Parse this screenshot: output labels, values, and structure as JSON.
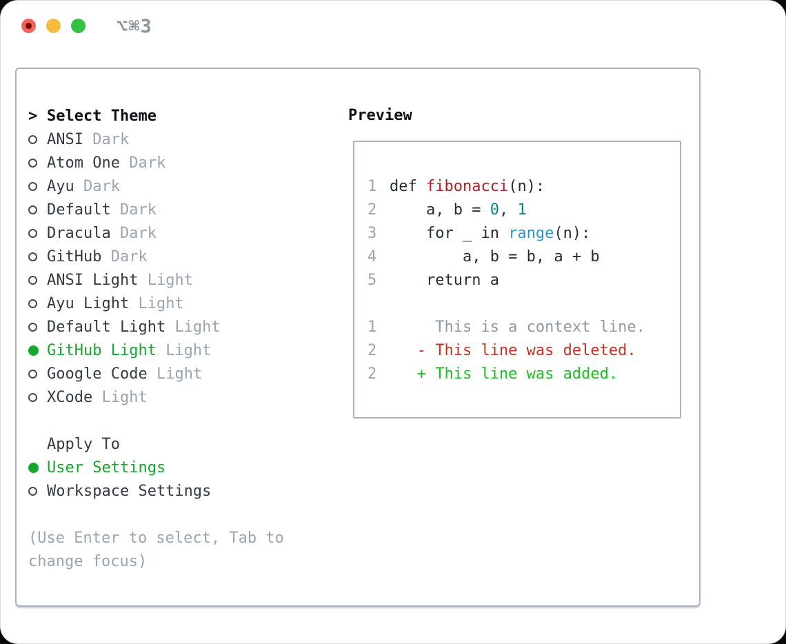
{
  "window": {
    "title": "⌥⌘3"
  },
  "theme_picker": {
    "prompt_char": ">",
    "header": "Select Theme",
    "items": [
      {
        "label": "ANSI",
        "tag": "Dark",
        "selected": false
      },
      {
        "label": "Atom One",
        "tag": "Dark",
        "selected": false
      },
      {
        "label": "Ayu",
        "tag": "Dark",
        "selected": false
      },
      {
        "label": "Default",
        "tag": "Dark",
        "selected": false
      },
      {
        "label": "Dracula",
        "tag": "Dark",
        "selected": false
      },
      {
        "label": "GitHub",
        "tag": "Dark",
        "selected": false
      },
      {
        "label": "ANSI Light",
        "tag": "Light",
        "selected": false
      },
      {
        "label": "Ayu Light",
        "tag": "Light",
        "selected": false
      },
      {
        "label": "Default Light",
        "tag": "Light",
        "selected": false
      },
      {
        "label": "GitHub Light",
        "tag": "Light",
        "selected": true
      },
      {
        "label": "Google Code",
        "tag": "Light",
        "selected": false
      },
      {
        "label": "XCode",
        "tag": "Light",
        "selected": false
      }
    ]
  },
  "apply_to": {
    "header": "Apply To",
    "items": [
      {
        "label": "User Settings",
        "selected": true
      },
      {
        "label": "Workspace Settings",
        "selected": false
      }
    ]
  },
  "help_lines": [
    "(Use Enter to select, Tab to",
    "change focus)"
  ],
  "preview": {
    "title": "Preview",
    "code_lines": [
      {
        "num": "1",
        "segments": [
          {
            "t": "def ",
            "c": "code"
          },
          {
            "t": "fibonacci",
            "c": "func"
          },
          {
            "t": "(n):",
            "c": "code"
          }
        ]
      },
      {
        "num": "2",
        "segments": [
          {
            "t": "    a, b = ",
            "c": "code"
          },
          {
            "t": "0",
            "c": "num"
          },
          {
            "t": ", ",
            "c": "code"
          },
          {
            "t": "1",
            "c": "num"
          }
        ]
      },
      {
        "num": "3",
        "segments": [
          {
            "t": "    for _ in ",
            "c": "code"
          },
          {
            "t": "range",
            "c": "call"
          },
          {
            "t": "(n):",
            "c": "code"
          }
        ]
      },
      {
        "num": "4",
        "segments": [
          {
            "t": "        a, b = b, a + b",
            "c": "code"
          }
        ]
      },
      {
        "num": "5",
        "segments": [
          {
            "t": "    return a",
            "c": "code"
          }
        ]
      }
    ],
    "diff_lines": [
      {
        "num": "1",
        "segments": [
          {
            "t": "     This is a context line.",
            "c": "ctx"
          }
        ]
      },
      {
        "num": "2",
        "segments": [
          {
            "t": "   - This line was deleted.",
            "c": "del"
          }
        ]
      },
      {
        "num": "2",
        "segments": [
          {
            "t": "   + This line was added.",
            "c": "add"
          }
        ]
      }
    ]
  },
  "colors": {
    "code": "#262d35",
    "func": "#b01e24",
    "num": "#0e7f89",
    "call": "#2e95c8",
    "ctx": "#8e98a3",
    "del": "#c53122",
    "add": "#1dbe23",
    "selected": "#16a72d"
  }
}
